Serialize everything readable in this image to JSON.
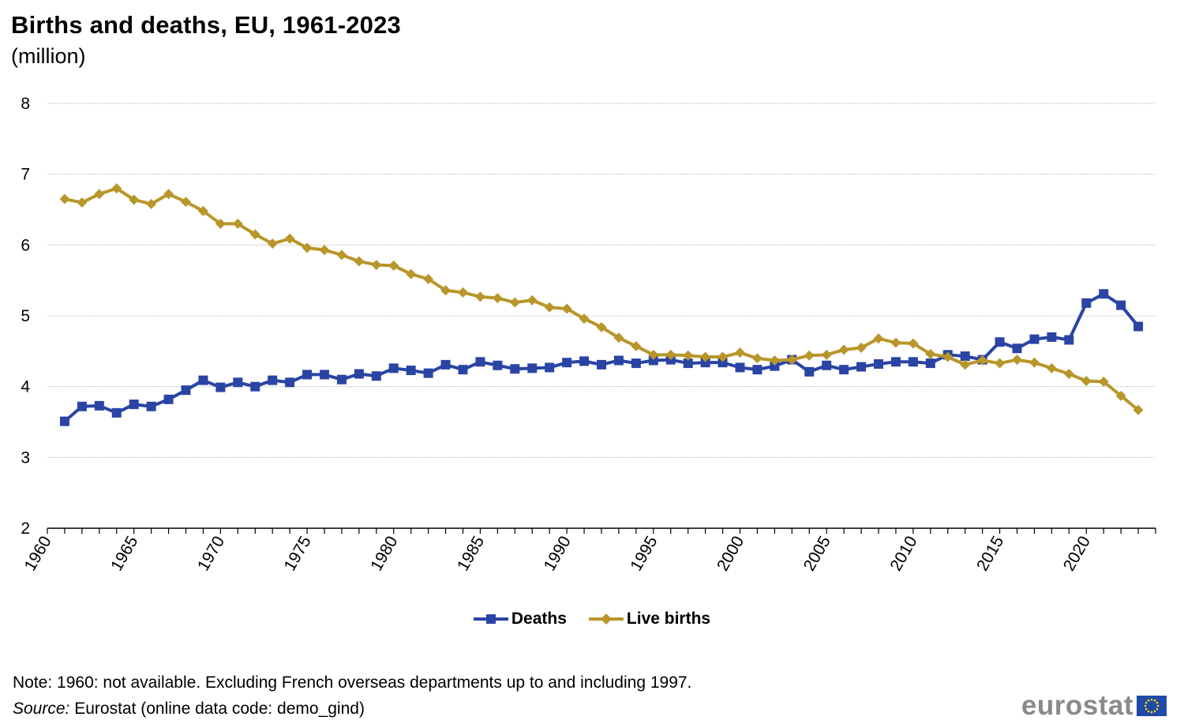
{
  "header": {
    "title": "Births and deaths, EU, 1961-2023",
    "subtitle": "(million)"
  },
  "footer": {
    "note": "Note: 1960: not available. Excluding French overseas  departments up to and including 1997.",
    "source_label": "Source:",
    "source_text": " Eurostat (online data code: demo_gind)",
    "logo_text": "eurostat"
  },
  "colors": {
    "deaths": "#2a44a4",
    "live_births": "#b8962a",
    "grid": "#c8c8c8",
    "eu_flag": "#1f4aa8",
    "eu_stars": "#ffdd00"
  },
  "chart_data": {
    "type": "line",
    "title": "Births and deaths, EU, 1961-2023",
    "subtitle": "(million)",
    "xlim": [
      1960,
      2024
    ],
    "ylim": [
      2,
      8
    ],
    "y_ticks": [
      2,
      3,
      4,
      5,
      6,
      7,
      8
    ],
    "x_ticks": [
      1960,
      1965,
      1970,
      1975,
      1980,
      1985,
      1990,
      1995,
      2000,
      2005,
      2010,
      2015,
      2020
    ],
    "grid": "horizontal",
    "legend_position": "bottom-center",
    "x": [
      1961,
      1962,
      1963,
      1964,
      1965,
      1966,
      1967,
      1968,
      1969,
      1970,
      1971,
      1972,
      1973,
      1974,
      1975,
      1976,
      1977,
      1978,
      1979,
      1980,
      1981,
      1982,
      1983,
      1984,
      1985,
      1986,
      1987,
      1988,
      1989,
      1990,
      1991,
      1992,
      1993,
      1994,
      1995,
      1996,
      1997,
      1998,
      1999,
      2000,
      2001,
      2002,
      2003,
      2004,
      2005,
      2006,
      2007,
      2008,
      2009,
      2010,
      2011,
      2012,
      2013,
      2014,
      2015,
      2016,
      2017,
      2018,
      2019,
      2020,
      2021,
      2022,
      2023
    ],
    "series": [
      {
        "name": "Deaths",
        "marker": "square",
        "values": [
          3.51,
          3.72,
          3.73,
          3.63,
          3.75,
          3.72,
          3.82,
          3.95,
          4.09,
          3.99,
          4.06,
          4.0,
          4.09,
          4.06,
          4.17,
          4.17,
          4.1,
          4.18,
          4.15,
          4.26,
          4.23,
          4.19,
          4.31,
          4.24,
          4.35,
          4.3,
          4.25,
          4.26,
          4.27,
          4.34,
          4.36,
          4.31,
          4.37,
          4.33,
          4.37,
          4.38,
          4.33,
          4.34,
          4.34,
          4.27,
          4.24,
          4.29,
          4.38,
          4.21,
          4.3,
          4.24,
          4.28,
          4.32,
          4.35,
          4.35,
          4.33,
          4.45,
          4.43,
          4.38,
          4.63,
          4.54,
          4.67,
          4.7,
          4.66,
          5.18,
          5.31,
          5.15,
          4.85
        ]
      },
      {
        "name": "Live births",
        "marker": "diamond",
        "values": [
          6.65,
          6.6,
          6.72,
          6.8,
          6.64,
          6.58,
          6.72,
          6.61,
          6.48,
          6.3,
          6.3,
          6.15,
          6.02,
          6.09,
          5.96,
          5.93,
          5.86,
          5.77,
          5.72,
          5.71,
          5.59,
          5.52,
          5.36,
          5.33,
          5.27,
          5.25,
          5.19,
          5.22,
          5.12,
          5.1,
          4.96,
          4.84,
          4.69,
          4.57,
          4.45,
          4.45,
          4.44,
          4.42,
          4.42,
          4.48,
          4.4,
          4.37,
          4.38,
          4.44,
          4.45,
          4.52,
          4.55,
          4.68,
          4.62,
          4.61,
          4.46,
          4.42,
          4.31,
          4.37,
          4.33,
          4.38,
          4.34,
          4.26,
          4.18,
          4.08,
          4.07,
          3.87,
          3.67
        ]
      }
    ]
  }
}
